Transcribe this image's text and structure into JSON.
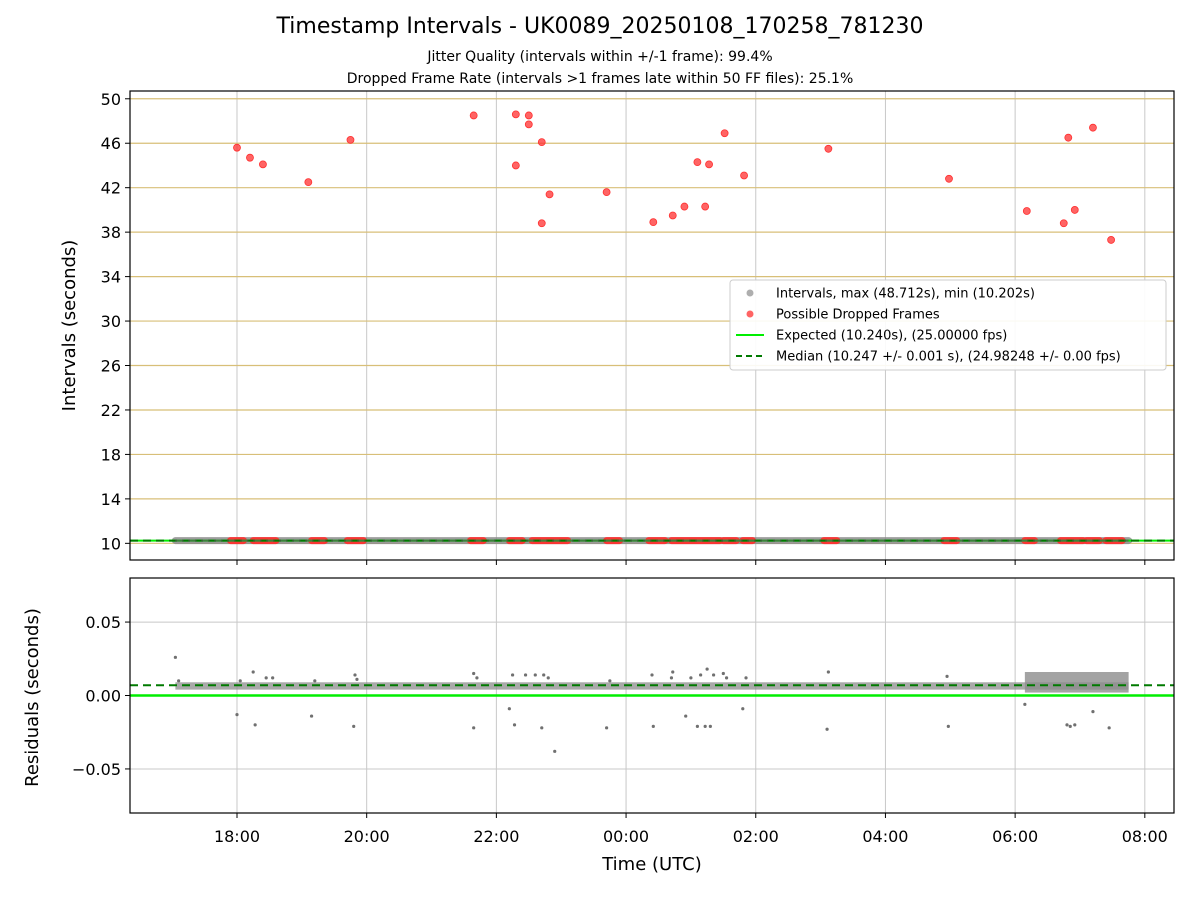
{
  "figure": {
    "title": "Timestamp Intervals - UK0089_20250108_170258_781230",
    "subtitle_1": "Jitter Quality (intervals within +/-1 frame): 99.4%",
    "subtitle_2": "Dropped Frame Rate (intervals >1 frames late within 50 FF files): 25.1%"
  },
  "colors": {
    "intervals": "#8c8c8c",
    "dropped": "#ff3030",
    "expected": "#00ee00",
    "median": "#007a00",
    "grid_h_top": "#d8bf78",
    "grid": "#c8c8c8"
  },
  "chart_data": [
    {
      "type": "scatter",
      "panel": "intervals",
      "ylabel": "Intervals (seconds)",
      "xlabel": "",
      "x_unit": "hours since 00:00 UTC (negative = previous day)",
      "xlim": [
        -7.65,
        8.45
      ],
      "ylim": [
        8.5,
        50.7
      ],
      "yticks": [
        10,
        14,
        18,
        22,
        26,
        30,
        34,
        38,
        42,
        46,
        50
      ],
      "grid": true,
      "legend_position": "right",
      "legend": [
        "Intervals, max (48.712s), min (10.202s)",
        "Possible Dropped Frames",
        "Expected (10.240s), (25.00000 fps)",
        "Median (10.247 +/- 0.001 s), (24.98248 +/- 0.00 fps)"
      ],
      "expected_line": 10.24,
      "median_line": 10.247,
      "interval_band": {
        "x_start": -6.95,
        "x_end": 7.75,
        "y": 10.247
      },
      "baseline_dropped_clusters": [
        [
          -6.1,
          -5.9
        ],
        [
          -5.75,
          -5.4
        ],
        [
          -4.85,
          -4.65
        ],
        [
          -4.3,
          -4.05
        ],
        [
          -2.4,
          -2.2
        ],
        [
          -1.8,
          -1.6
        ],
        [
          -1.45,
          -0.9
        ],
        [
          -0.3,
          -0.1
        ],
        [
          0.35,
          0.6
        ],
        [
          0.7,
          1.45
        ],
        [
          1.5,
          1.7
        ],
        [
          1.8,
          1.95
        ],
        [
          3.05,
          3.25
        ],
        [
          4.9,
          5.1
        ],
        [
          6.15,
          6.3
        ],
        [
          6.7,
          7.05
        ],
        [
          7.1,
          7.3
        ],
        [
          7.4,
          7.65
        ]
      ],
      "dropped_points": [
        {
          "x": -6.0,
          "y": 45.6
        },
        {
          "x": -5.8,
          "y": 44.7
        },
        {
          "x": -5.6,
          "y": 44.1
        },
        {
          "x": -4.9,
          "y": 42.5
        },
        {
          "x": -4.25,
          "y": 46.3
        },
        {
          "x": -2.35,
          "y": 48.5
        },
        {
          "x": -1.7,
          "y": 44.0
        },
        {
          "x": -1.7,
          "y": 48.6
        },
        {
          "x": -1.5,
          "y": 48.5
        },
        {
          "x": -1.5,
          "y": 47.7
        },
        {
          "x": -1.3,
          "y": 46.1
        },
        {
          "x": -1.3,
          "y": 38.8
        },
        {
          "x": -1.18,
          "y": 41.4
        },
        {
          "x": -0.3,
          "y": 41.6
        },
        {
          "x": 0.42,
          "y": 38.9
        },
        {
          "x": 0.72,
          "y": 39.5
        },
        {
          "x": 0.9,
          "y": 40.3
        },
        {
          "x": 1.1,
          "y": 44.3
        },
        {
          "x": 1.22,
          "y": 40.3
        },
        {
          "x": 1.28,
          "y": 44.1
        },
        {
          "x": 1.52,
          "y": 46.9
        },
        {
          "x": 1.82,
          "y": 43.1
        },
        {
          "x": 3.12,
          "y": 45.5
        },
        {
          "x": 4.98,
          "y": 42.8
        },
        {
          "x": 6.18,
          "y": 39.9
        },
        {
          "x": 6.75,
          "y": 38.8
        },
        {
          "x": 6.82,
          "y": 46.5
        },
        {
          "x": 6.92,
          "y": 40.0
        },
        {
          "x": 7.2,
          "y": 47.4
        },
        {
          "x": 7.48,
          "y": 37.3
        }
      ]
    },
    {
      "type": "scatter",
      "panel": "residuals",
      "ylabel": "Residuals (seconds)",
      "xlabel": "Time (UTC)",
      "xlim": [
        -7.65,
        8.45
      ],
      "ylim": [
        -0.08,
        0.08
      ],
      "yticks": [
        0.05,
        0.0,
        -0.05
      ],
      "ytick_labels": [
        "0.05",
        "0.00",
        "−0.05"
      ],
      "xticks": [
        -6,
        -4,
        -2,
        0,
        2,
        4,
        6,
        8
      ],
      "xtick_labels": [
        "18:00",
        "20:00",
        "22:00",
        "00:00",
        "02:00",
        "04:00",
        "06:00",
        "08:00"
      ],
      "grid": true,
      "expected_line": 0.0,
      "median_line": 0.007,
      "baseline_band": {
        "x_start": -6.95,
        "x_end": 7.75,
        "y_min": 0.004,
        "y_max": 0.009
      },
      "dense_band": {
        "x_start": 6.15,
        "x_end": 7.75,
        "y_min": 0.002,
        "y_max": 0.016
      },
      "points": [
        {
          "x": -6.95,
          "y": 0.026
        },
        {
          "x": -6.9,
          "y": 0.01
        },
        {
          "x": -6.0,
          "y": -0.013
        },
        {
          "x": -5.95,
          "y": 0.01
        },
        {
          "x": -5.75,
          "y": 0.016
        },
        {
          "x": -5.72,
          "y": -0.02
        },
        {
          "x": -5.55,
          "y": 0.012
        },
        {
          "x": -5.45,
          "y": 0.012
        },
        {
          "x": -4.85,
          "y": -0.014
        },
        {
          "x": -4.8,
          "y": 0.01
        },
        {
          "x": -4.2,
          "y": -0.021
        },
        {
          "x": -4.18,
          "y": 0.014
        },
        {
          "x": -4.15,
          "y": 0.011
        },
        {
          "x": -2.35,
          "y": 0.015
        },
        {
          "x": -2.35,
          "y": -0.022
        },
        {
          "x": -2.3,
          "y": 0.012
        },
        {
          "x": -1.8,
          "y": -0.009
        },
        {
          "x": -1.75,
          "y": 0.014
        },
        {
          "x": -1.72,
          "y": -0.02
        },
        {
          "x": -1.55,
          "y": 0.014
        },
        {
          "x": -1.4,
          "y": 0.014
        },
        {
          "x": -1.3,
          "y": -0.022
        },
        {
          "x": -1.27,
          "y": 0.014
        },
        {
          "x": -1.2,
          "y": 0.012
        },
        {
          "x": -1.1,
          "y": -0.038
        },
        {
          "x": -0.3,
          "y": -0.022
        },
        {
          "x": -0.25,
          "y": 0.01
        },
        {
          "x": 0.4,
          "y": 0.014
        },
        {
          "x": 0.42,
          "y": -0.021
        },
        {
          "x": 0.7,
          "y": 0.012
        },
        {
          "x": 0.72,
          "y": 0.016
        },
        {
          "x": 0.92,
          "y": -0.014
        },
        {
          "x": 1.0,
          "y": 0.012
        },
        {
          "x": 1.1,
          "y": -0.021
        },
        {
          "x": 1.15,
          "y": 0.014
        },
        {
          "x": 1.22,
          "y": -0.021
        },
        {
          "x": 1.25,
          "y": 0.018
        },
        {
          "x": 1.3,
          "y": -0.021
        },
        {
          "x": 1.35,
          "y": 0.014
        },
        {
          "x": 1.5,
          "y": 0.015
        },
        {
          "x": 1.55,
          "y": 0.012
        },
        {
          "x": 1.8,
          "y": -0.009
        },
        {
          "x": 1.85,
          "y": 0.012
        },
        {
          "x": 3.1,
          "y": -0.023
        },
        {
          "x": 3.12,
          "y": 0.016
        },
        {
          "x": 4.95,
          "y": 0.013
        },
        {
          "x": 4.97,
          "y": -0.021
        },
        {
          "x": 6.15,
          "y": -0.006
        },
        {
          "x": 6.8,
          "y": -0.02
        },
        {
          "x": 6.85,
          "y": -0.021
        },
        {
          "x": 6.92,
          "y": -0.02
        },
        {
          "x": 7.2,
          "y": -0.011
        },
        {
          "x": 7.45,
          "y": -0.022
        }
      ]
    }
  ]
}
